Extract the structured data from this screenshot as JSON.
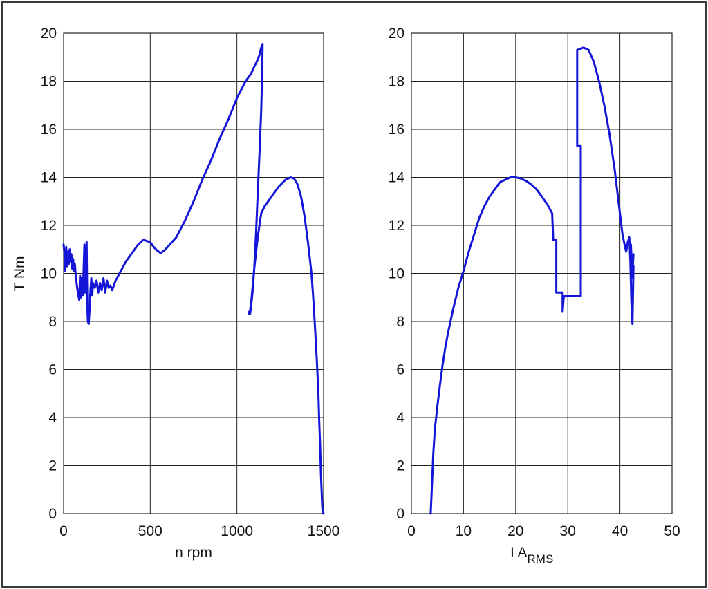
{
  "chart_data": [
    {
      "type": "line",
      "title": "",
      "xlabel": "n rpm",
      "ylabel": "T Nm",
      "xlim": [
        0,
        1500
      ],
      "ylim": [
        0,
        20
      ],
      "xticks": [
        "0",
        "500",
        "1000",
        "1500"
      ],
      "yticks": [
        "0",
        "2",
        "4",
        "6",
        "8",
        "10",
        "12",
        "14",
        "16",
        "18",
        "20"
      ],
      "grid": true,
      "color": "#1515d8",
      "series": [
        {
          "x": [
            0,
            5,
            10,
            15,
            20,
            25,
            30,
            35,
            40,
            45,
            50,
            55,
            60,
            65,
            70,
            75,
            80,
            90,
            95,
            100,
            105,
            110,
            115,
            120,
            125,
            130,
            133,
            135,
            138,
            140,
            145,
            150,
            155,
            160,
            165,
            170,
            180,
            190,
            200,
            210,
            220,
            230,
            240,
            250,
            260,
            270,
            280,
            300,
            330,
            360,
            400,
            430,
            460,
            480,
            500,
            520,
            540,
            560,
            580,
            600,
            650,
            700,
            750,
            800,
            850,
            900,
            950,
            1000,
            1050,
            1080,
            1100,
            1120,
            1130,
            1140,
            1148,
            1146,
            1140,
            1130,
            1120,
            1110,
            1100,
            1090,
            1080,
            1075,
            1072,
            1070,
            1075,
            1085,
            1100,
            1120,
            1140,
            1160,
            1200,
            1240,
            1280,
            1310,
            1330,
            1350,
            1370,
            1390,
            1410,
            1430,
            1440,
            1450,
            1460,
            1470,
            1475,
            1480,
            1485,
            1490,
            1493,
            1496,
            1500
          ],
          "y": [
            11.2,
            10.8,
            10.1,
            11.1,
            10.3,
            10.9,
            10.4,
            11.0,
            10.5,
            10.8,
            10.2,
            10.6,
            10.1,
            10.4,
            9.9,
            9.6,
            9.3,
            8.9,
            9.9,
            9.0,
            9.8,
            9.1,
            10.0,
            11.2,
            9.2,
            10.5,
            11.3,
            9.8,
            8.4,
            8.0,
            7.9,
            8.5,
            9.3,
            9.8,
            9.1,
            9.6,
            9.4,
            9.7,
            9.2,
            9.6,
            9.3,
            9.8,
            9.2,
            9.7,
            9.4,
            9.5,
            9.3,
            9.7,
            10.1,
            10.5,
            10.9,
            11.2,
            11.4,
            11.35,
            11.3,
            11.1,
            10.95,
            10.85,
            10.95,
            11.1,
            11.5,
            12.2,
            13.0,
            13.9,
            14.7,
            15.6,
            16.4,
            17.3,
            18.0,
            18.3,
            18.6,
            18.9,
            19.1,
            19.4,
            19.55,
            18.5,
            16.8,
            15.0,
            13.3,
            11.6,
            10.2,
            9.2,
            8.5,
            8.3,
            8.3,
            8.4,
            8.4,
            9.0,
            10.2,
            11.5,
            12.5,
            12.8,
            13.2,
            13.6,
            13.9,
            14.0,
            13.95,
            13.7,
            13.2,
            12.4,
            11.3,
            10.0,
            9.0,
            7.8,
            6.5,
            5.0,
            3.8,
            2.8,
            1.6,
            0.7,
            0.2,
            0.05,
            0.0
          ]
        }
      ]
    },
    {
      "type": "line",
      "title": "",
      "xlabel_main": "I A",
      "xlabel_sub": "RMS",
      "ylabel": "",
      "xlim": [
        0,
        50
      ],
      "ylim": [
        0,
        20
      ],
      "xticks": [
        "0",
        "10",
        "20",
        "30",
        "40",
        "50"
      ],
      "yticks": [
        "0",
        "2",
        "4",
        "6",
        "8",
        "10",
        "12",
        "14",
        "16",
        "18",
        "20"
      ],
      "grid": true,
      "color": "#1515d8",
      "series": [
        {
          "x": [
            3.7,
            3.8,
            4.0,
            4.2,
            4.5,
            5.0,
            5.5,
            6.0,
            6.5,
            7.0,
            8.0,
            9.0,
            10.0,
            11.0,
            12.0,
            13.0,
            14.0,
            15.0,
            16.0,
            17.0,
            18.0,
            19.0,
            20.0,
            21.0,
            22.0,
            23.0,
            24.0,
            25.0,
            26.0,
            26.5,
            27.0,
            27.2,
            27.2,
            27.8,
            27.8,
            28.0,
            29.0,
            29.0,
            29.2,
            29.4,
            29.2,
            29.5,
            31.0,
            32.2,
            32.5,
            32.5,
            32.5,
            32.0,
            31.8,
            31.8,
            33.0,
            34.0,
            35.0,
            36.0,
            37.0,
            38.0,
            39.0,
            40.0,
            40.5,
            41.0,
            41.2,
            41.5,
            41.8,
            42.0,
            42.2,
            42.4,
            42.6,
            42.3,
            42.1,
            42.4,
            42.6
          ],
          "y": [
            0.0,
            0.5,
            1.5,
            2.5,
            3.5,
            4.5,
            5.4,
            6.2,
            6.9,
            7.5,
            8.5,
            9.4,
            10.1,
            10.9,
            11.6,
            12.3,
            12.8,
            13.2,
            13.5,
            13.8,
            13.9,
            14.0,
            14.0,
            13.95,
            13.85,
            13.7,
            13.5,
            13.2,
            12.9,
            12.7,
            12.5,
            11.4,
            11.4,
            11.4,
            9.2,
            9.2,
            9.2,
            8.4,
            9.0,
            9.05,
            9.05,
            9.05,
            9.05,
            9.05,
            9.05,
            15.3,
            15.3,
            15.3,
            15.3,
            19.3,
            19.4,
            19.3,
            18.8,
            18.0,
            17.0,
            15.8,
            14.3,
            12.5,
            11.6,
            11.1,
            10.9,
            11.3,
            11.5,
            10.5,
            8.8,
            7.9,
            10.3,
            9.8,
            11.2,
            10.0,
            10.8
          ]
        }
      ]
    }
  ]
}
